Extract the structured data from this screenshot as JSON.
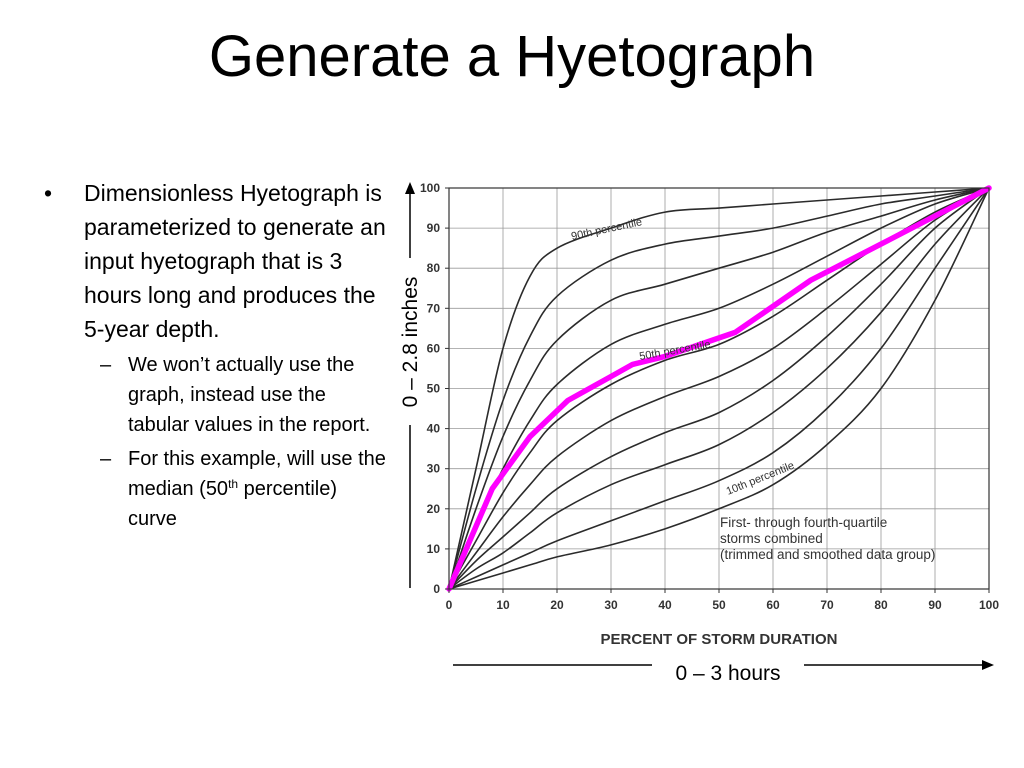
{
  "slide": {
    "title": "Generate a Hyetograph",
    "bullet1": "Dimensionless Hyetograph is parameterized to generate an input hyetograph that is 3 hours long and produces the 5-year depth.",
    "sub1": "We won’t actually use the graph, instead use the tabular values in the report.",
    "sub2_before": "For this example, will use the median (50",
    "sub2_sup": "th",
    "sub2_after": " percentile) curve"
  },
  "annotations": {
    "y_range_label": "0 – 2.8 inches",
    "x_range_label": "0 – 3 hours"
  },
  "chart_data": {
    "type": "line",
    "xlabel": "PERCENT OF STORM DURATION",
    "ylabel": "",
    "xlim": [
      0,
      100
    ],
    "ylim": [
      0,
      100
    ],
    "x_ticks": [
      0,
      10,
      20,
      30,
      40,
      50,
      60,
      70,
      80,
      90,
      100
    ],
    "y_ticks": [
      0,
      10,
      20,
      30,
      40,
      50,
      60,
      70,
      80,
      90,
      100
    ],
    "grid": true,
    "curve_labels": [
      "90th percentile",
      "50th percentile",
      "10th percentile"
    ],
    "note": [
      "First- through fourth-quartile",
      "storms combined",
      "(trimmed and smoothed data group)"
    ],
    "series": [
      {
        "x": [
          0,
          5,
          10,
          15,
          20,
          30,
          40,
          50,
          60,
          70,
          80,
          90,
          100
        ],
        "y": [
          0,
          30,
          60,
          78,
          85,
          90,
          94,
          95,
          96,
          97,
          98,
          99,
          100
        ]
      },
      {
        "x": [
          0,
          5,
          10,
          15,
          20,
          30,
          40,
          50,
          60,
          70,
          80,
          90,
          100
        ],
        "y": [
          0,
          25,
          47,
          63,
          73,
          82,
          86,
          88,
          90,
          93,
          96,
          98,
          100
        ]
      },
      {
        "x": [
          0,
          5,
          10,
          15,
          20,
          30,
          40,
          50,
          60,
          70,
          80,
          90,
          100
        ],
        "y": [
          0,
          20,
          38,
          52,
          62,
          72,
          76,
          80,
          84,
          89,
          93,
          97,
          100
        ]
      },
      {
        "x": [
          0,
          5,
          10,
          15,
          20,
          30,
          40,
          50,
          60,
          70,
          80,
          90,
          100
        ],
        "y": [
          0,
          16,
          30,
          42,
          51,
          61,
          66,
          70,
          76,
          83,
          90,
          96,
          100
        ]
      },
      {
        "x": [
          0,
          5,
          10,
          15,
          20,
          30,
          40,
          50,
          60,
          70,
          80,
          90,
          100
        ],
        "y": [
          0,
          12,
          24,
          34,
          42,
          51,
          57,
          61,
          68,
          77,
          86,
          94,
          100
        ]
      },
      {
        "x": [
          0,
          5,
          10,
          15,
          20,
          30,
          40,
          50,
          60,
          70,
          80,
          90,
          100
        ],
        "y": [
          0,
          9,
          18,
          26,
          33,
          42,
          48,
          53,
          60,
          70,
          81,
          92,
          100
        ]
      },
      {
        "x": [
          0,
          5,
          10,
          15,
          20,
          30,
          40,
          50,
          60,
          70,
          80,
          90,
          100
        ],
        "y": [
          0,
          7,
          13,
          19,
          25,
          33,
          39,
          44,
          52,
          63,
          76,
          90,
          100
        ]
      },
      {
        "x": [
          0,
          5,
          10,
          15,
          20,
          30,
          40,
          50,
          60,
          70,
          80,
          90,
          100
        ],
        "y": [
          0,
          5,
          9,
          14,
          19,
          26,
          31,
          36,
          44,
          55,
          69,
          86,
          100
        ]
      },
      {
        "x": [
          0,
          5,
          10,
          15,
          20,
          30,
          40,
          50,
          60,
          70,
          80,
          90,
          100
        ],
        "y": [
          0,
          3,
          6,
          9,
          12,
          17,
          22,
          27,
          34,
          45,
          60,
          80,
          100
        ]
      },
      {
        "x": [
          0,
          5,
          10,
          15,
          20,
          30,
          40,
          50,
          60,
          70,
          80,
          90,
          100
        ],
        "y": [
          0,
          2,
          4,
          6,
          8,
          11,
          15,
          20,
          26,
          36,
          50,
          72,
          100
        ]
      }
    ],
    "highlight_series": {
      "x": [
        0,
        8,
        15,
        22,
        30,
        34,
        40,
        53,
        67,
        80,
        100
      ],
      "y": [
        0,
        25,
        38,
        47,
        53,
        56,
        58,
        64,
        77,
        86,
        100
      ],
      "color": "#ff00ff"
    }
  }
}
